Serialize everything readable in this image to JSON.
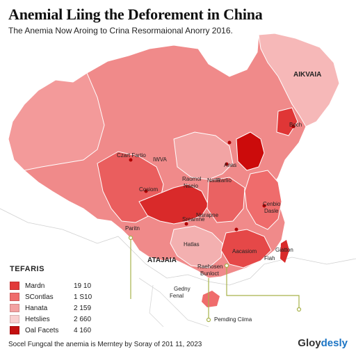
{
  "title": "Anemial Liing the Deforement in China",
  "subtitle": "The Anemia Now Aroing to Crina Resormaional Anorry 2016.",
  "map_labels": [
    "AIKVAIA",
    "Boch",
    "Czart Fartio",
    "IWVA",
    "Anas",
    "Rarlio",
    "Cosiom",
    "Raomol",
    "Naeio",
    "Natlo",
    "Cenbio",
    "Dasle",
    "Sreamne",
    "Nisrapne",
    "Paritn",
    "Hatlas",
    "ATAJAIA",
    "Giatton",
    "Fiah",
    "Raehosen",
    "Bunloct",
    "Aacasiom",
    "Gedny",
    "Fenal",
    "Pemding Ciima"
  ],
  "legend": {
    "title": "TEFARIS",
    "items": [
      {
        "label": "Mardn",
        "value": "19 10",
        "color": "#e23b3b"
      },
      {
        "label": "SContlas",
        "value": "1 S10",
        "color": "#ef6c6c"
      },
      {
        "label": "Hanata",
        "value": "2 159",
        "color": "#f3a1a1"
      },
      {
        "label": "Hetslies",
        "value": "2 660",
        "color": "#f9cfcf"
      },
      {
        "label": "Oal Facets",
        "value": "4 160",
        "color": "#c41010"
      }
    ]
  },
  "footer": "Socel Fungcal the anemia is Merntey by Soray of 201 11, 2023",
  "logo": {
    "main": "Gloy",
    "accent": "desly"
  },
  "colors": {
    "base": "#f08a8a",
    "light": "#f6b8b8",
    "mid": "#ee7070",
    "dark": "#d92a2a",
    "hotspot": "#cc0b0b",
    "callout": "#a7b24a"
  }
}
